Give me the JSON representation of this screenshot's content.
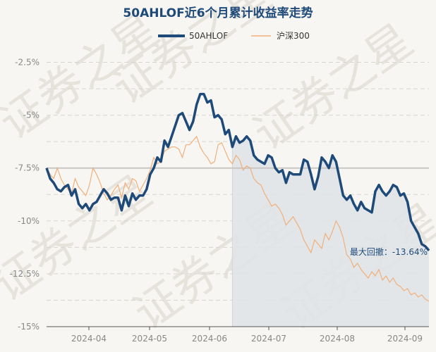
{
  "chart_data": {
    "type": "line",
    "title": "50AHLOF近6个月累计收益率走势",
    "legend_position": "top-center",
    "grid": true,
    "watermark": "证券之星",
    "ylim": [
      -15,
      -1.75
    ],
    "y_ticks": [
      "-2.5%",
      "-5%",
      "-7.5%",
      "-10%",
      "-12.5%",
      "-15%"
    ],
    "y_tick_values": [
      -2.5,
      -5,
      -7.5,
      -10,
      -12.5,
      -15
    ],
    "x_ticks": [
      "2024-04",
      "2024-05",
      "2024-06",
      "2024-07",
      "2024-08",
      "2024-09"
    ],
    "reference_line": -7.5,
    "max_drawdown_label": "最大回撤：-13.64%",
    "drawdown_start_index": 52,
    "colors": {
      "fund": "#1e4a7a",
      "index": "#f0b07c",
      "fill": "#dfe3e6",
      "ref": "#c9c7c4"
    },
    "series": [
      {
        "name": "50AHLOF",
        "values": [
          -7.5,
          -8.0,
          -8.2,
          -8.5,
          -8.6,
          -8.4,
          -8.3,
          -8.8,
          -8.5,
          -9.2,
          -9.4,
          -9.2,
          -9.5,
          -9.2,
          -9.1,
          -8.8,
          -8.5,
          -8.7,
          -9.0,
          -8.9,
          -8.9,
          -9.5,
          -8.8,
          -9.3,
          -8.7,
          -9.0,
          -8.8,
          -8.8,
          -8.5,
          -7.8,
          -7.5,
          -7.0,
          -7.2,
          -6.2,
          -6.5,
          -6.0,
          -5.5,
          -5.0,
          -4.9,
          -5.3,
          -5.7,
          -5.3,
          -4.5,
          -4.0,
          -4.0,
          -4.4,
          -4.3,
          -5.1,
          -5.0,
          -5.2,
          -5.9,
          -5.7,
          -6.5,
          -6.0,
          -6.3,
          -6.2,
          -6.0,
          -6.2,
          -6.9,
          -7.1,
          -7.2,
          -7.3,
          -6.9,
          -7.0,
          -7.5,
          -7.7,
          -7.6,
          -8.2,
          -7.7,
          -7.8,
          -7.8,
          -7.8,
          -7.1,
          -7.2,
          -7.8,
          -8.5,
          -7.9,
          -7.0,
          -7.2,
          -7.5,
          -6.9,
          -7.2,
          -8.0,
          -8.8,
          -9.0,
          -8.8,
          -9.2,
          -9.5,
          -9.1,
          -9.4,
          -9.5,
          -9.6,
          -8.6,
          -8.3,
          -8.6,
          -8.8,
          -8.6,
          -8.3,
          -8.4,
          -8.8,
          -8.7,
          -9.1,
          -10.0,
          -10.3,
          -10.6,
          -11.1,
          -11.2,
          -11.4
        ]
      },
      {
        "name": "沪深300",
        "values": [
          -7.5,
          -7.8,
          -8.0,
          -7.5,
          -8.0,
          -8.3,
          -8.5,
          -8.7,
          -8.0,
          -8.4,
          -8.6,
          -8.8,
          -8.3,
          -7.5,
          -7.8,
          -8.2,
          -8.7,
          -9.0,
          -8.8,
          -8.5,
          -8.3,
          -8.9,
          -8.2,
          -8.5,
          -8.0,
          -8.1,
          -8.6,
          -8.3,
          -8.0,
          -7.6,
          -7.0,
          -7.3,
          -7.2,
          -6.7,
          -6.6,
          -6.5,
          -6.5,
          -6.6,
          -7.0,
          -6.4,
          -6.4,
          -6.2,
          -6.0,
          -6.5,
          -6.8,
          -7.0,
          -7.3,
          -7.2,
          -6.4,
          -6.3,
          -6.7,
          -7.1,
          -7.3,
          -6.9,
          -7.1,
          -7.6,
          -7.4,
          -7.5,
          -8.0,
          -8.2,
          -8.3,
          -8.7,
          -9.0,
          -9.3,
          -9.2,
          -9.4,
          -9.7,
          -10.2,
          -10.0,
          -9.8,
          -10.1,
          -10.4,
          -10.9,
          -11.2,
          -11.5,
          -10.9,
          -11.1,
          -11.3,
          -10.6,
          -10.9,
          -10.5,
          -10.0,
          -10.3,
          -10.8,
          -11.6,
          -11.8,
          -12.2,
          -12.0,
          -12.3,
          -12.5,
          -12.7,
          -12.4,
          -12.6,
          -12.3,
          -12.8,
          -12.6,
          -12.9,
          -12.7,
          -13.0,
          -13.1,
          -13.3,
          -13.2,
          -13.5,
          -13.4,
          -13.6,
          -13.5,
          -13.7,
          -13.8
        ]
      }
    ]
  }
}
